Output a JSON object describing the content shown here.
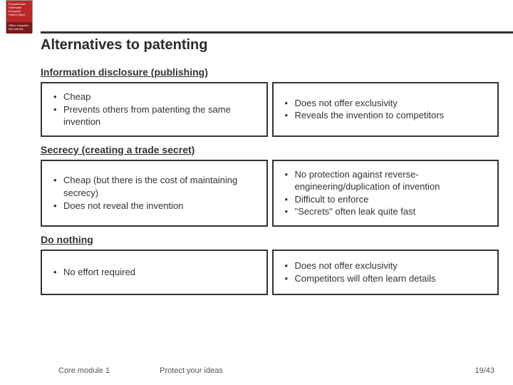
{
  "logo": {
    "top_text": "Europäisches Patentamt European Patent Office",
    "bottom_text": "Office européen des brevets"
  },
  "title": "Alternatives to patenting",
  "sections": [
    {
      "header": "Information disclosure (publishing)",
      "left": [
        "Cheap",
        "Prevents others from patenting the same invention"
      ],
      "right": [
        "Does not offer exclusivity",
        "Reveals the invention to competitors"
      ]
    },
    {
      "header": "Secrecy (creating a trade secret)",
      "left": [
        "Cheap (but there is the cost of maintaining secrecy)",
        "Does not reveal the invention"
      ],
      "right": [
        "No protection against reverse-engineering/duplication of invention",
        "Difficult to enforce",
        "\"Secrets\" often leak quite fast"
      ]
    },
    {
      "header": "Do nothing",
      "left": [
        "No effort required"
      ],
      "right": [
        "Does not offer exclusivity",
        "Competitors will often learn details"
      ]
    }
  ],
  "footer": {
    "module": "Core module 1",
    "subtitle": "Protect your ideas",
    "page": "19/43"
  },
  "colors": {
    "border": "#333333",
    "text": "#333333",
    "logo_bg": "#b82828",
    "logo_bottom_bg": "#7a1a1a",
    "background": "#ffffff"
  }
}
